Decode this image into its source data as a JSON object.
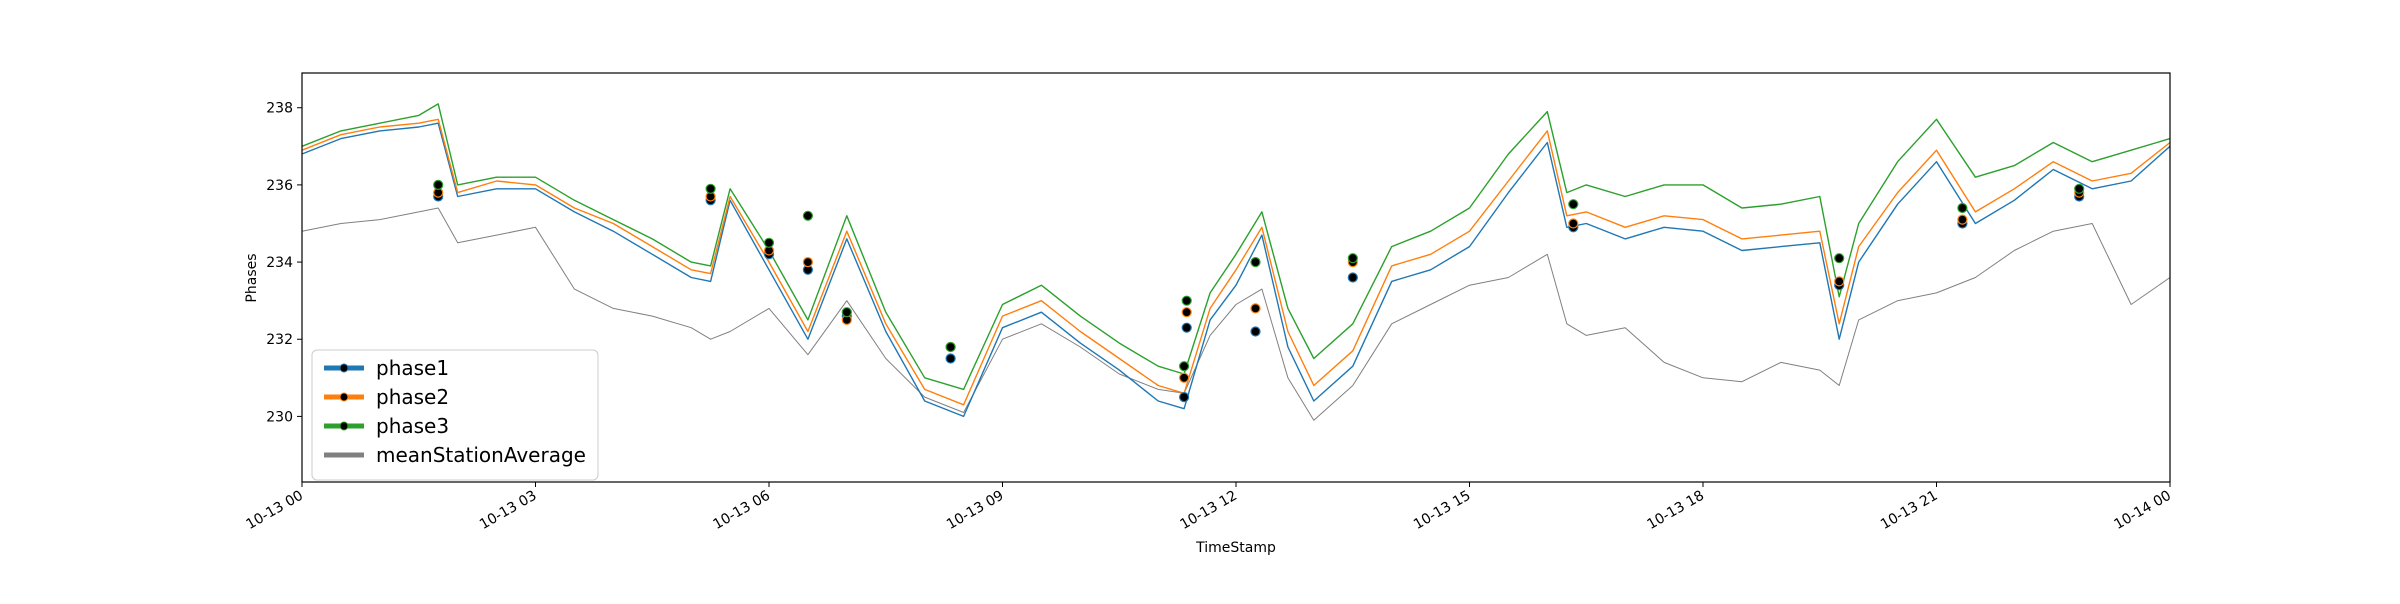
{
  "chart_data": {
    "type": "line",
    "title": "",
    "xlabel": "TimeStamp",
    "ylabel": "Phases",
    "xlim": [
      "2023-10-13 00:00",
      "2023-10-14 00:00"
    ],
    "ylim": [
      228.3,
      238.9
    ],
    "x_ticks": [
      {
        "t": "2023-10-13 00:00",
        "label": "10-13 00"
      },
      {
        "t": "2023-10-13 03:00",
        "label": "10-13 03"
      },
      {
        "t": "2023-10-13 06:00",
        "label": "10-13 06"
      },
      {
        "t": "2023-10-13 09:00",
        "label": "10-13 09"
      },
      {
        "t": "2023-10-13 12:00",
        "label": "10-13 12"
      },
      {
        "t": "2023-10-13 15:00",
        "label": "10-13 15"
      },
      {
        "t": "2023-10-13 18:00",
        "label": "10-13 18"
      },
      {
        "t": "2023-10-13 21:00",
        "label": "10-13 21"
      },
      {
        "t": "2023-10-14 00:00",
        "label": "10-14 00"
      }
    ],
    "y_ticks": [
      {
        "v": 230,
        "label": "230"
      },
      {
        "v": 232,
        "label": "232"
      },
      {
        "v": 234,
        "label": "234"
      },
      {
        "v": 236,
        "label": "236"
      },
      {
        "v": 238,
        "label": "238"
      }
    ],
    "grid": false,
    "legend_position": "lower-left",
    "x": [
      "2023-10-13 00:00",
      "2023-10-13 00:30",
      "2023-10-13 01:00",
      "2023-10-13 01:30",
      "2023-10-13 01:45",
      "2023-10-13 02:00",
      "2023-10-13 02:30",
      "2023-10-13 03:00",
      "2023-10-13 03:30",
      "2023-10-13 04:00",
      "2023-10-13 04:30",
      "2023-10-13 05:00",
      "2023-10-13 05:15",
      "2023-10-13 05:30",
      "2023-10-13 06:00",
      "2023-10-13 06:30",
      "2023-10-13 07:00",
      "2023-10-13 07:30",
      "2023-10-13 08:00",
      "2023-10-13 08:30",
      "2023-10-13 09:00",
      "2023-10-13 09:30",
      "2023-10-13 10:00",
      "2023-10-13 10:30",
      "2023-10-13 11:00",
      "2023-10-13 11:20",
      "2023-10-13 11:40",
      "2023-10-13 12:00",
      "2023-10-13 12:20",
      "2023-10-13 12:40",
      "2023-10-13 13:00",
      "2023-10-13 13:30",
      "2023-10-13 14:00",
      "2023-10-13 14:30",
      "2023-10-13 15:00",
      "2023-10-13 15:30",
      "2023-10-13 16:00",
      "2023-10-13 16:15",
      "2023-10-13 16:30",
      "2023-10-13 17:00",
      "2023-10-13 17:30",
      "2023-10-13 18:00",
      "2023-10-13 18:30",
      "2023-10-13 19:00",
      "2023-10-13 19:30",
      "2023-10-13 19:45",
      "2023-10-13 20:00",
      "2023-10-13 20:30",
      "2023-10-13 21:00",
      "2023-10-13 21:30",
      "2023-10-13 22:00",
      "2023-10-13 22:30",
      "2023-10-13 23:00",
      "2023-10-13 23:30",
      "2023-10-14 00:00"
    ],
    "series": [
      {
        "name": "phase1",
        "color": "#1f77b4",
        "values": [
          236.8,
          237.2,
          237.4,
          237.5,
          237.6,
          235.7,
          235.9,
          235.9,
          235.3,
          234.8,
          234.2,
          233.6,
          233.5,
          235.6,
          233.8,
          232.0,
          234.6,
          232.2,
          230.4,
          230.0,
          232.3,
          232.7,
          231.9,
          231.2,
          230.4,
          230.2,
          232.5,
          233.4,
          234.7,
          231.8,
          230.4,
          231.3,
          233.5,
          233.8,
          234.4,
          235.8,
          237.1,
          234.9,
          235.0,
          234.6,
          234.9,
          234.8,
          234.3,
          234.4,
          234.5,
          232.0,
          234.0,
          235.5,
          236.6,
          235.0,
          235.6,
          236.4,
          235.9,
          236.1,
          237.0
        ]
      },
      {
        "name": "phase2",
        "color": "#ff7f0e",
        "values": [
          236.9,
          237.3,
          237.5,
          237.6,
          237.7,
          235.8,
          236.1,
          236.0,
          235.4,
          235.0,
          234.4,
          233.8,
          233.7,
          235.7,
          234.0,
          232.2,
          234.8,
          232.4,
          230.7,
          230.3,
          232.6,
          233.0,
          232.2,
          231.5,
          230.8,
          230.6,
          232.8,
          233.8,
          234.9,
          232.2,
          230.8,
          231.7,
          233.9,
          234.2,
          234.8,
          236.1,
          237.4,
          235.2,
          235.3,
          234.9,
          235.2,
          235.1,
          234.6,
          234.7,
          234.8,
          232.4,
          234.4,
          235.8,
          236.9,
          235.3,
          235.9,
          236.6,
          236.1,
          236.3,
          237.1
        ]
      },
      {
        "name": "phase3",
        "color": "#2ca02c",
        "values": [
          237.0,
          237.4,
          237.6,
          237.8,
          238.1,
          236.0,
          236.2,
          236.2,
          235.6,
          235.1,
          234.6,
          234.0,
          233.9,
          235.9,
          234.3,
          232.5,
          235.2,
          232.7,
          231.0,
          230.7,
          232.9,
          233.4,
          232.6,
          231.9,
          231.3,
          231.1,
          233.2,
          234.2,
          235.3,
          232.8,
          231.5,
          232.4,
          234.4,
          234.8,
          235.4,
          236.8,
          237.9,
          235.8,
          236.0,
          235.7,
          236.0,
          236.0,
          235.4,
          235.5,
          235.7,
          233.1,
          235.0,
          236.6,
          237.7,
          236.2,
          236.5,
          237.1,
          236.6,
          236.9,
          237.2
        ]
      },
      {
        "name": "meanStationAverage",
        "color": "#808080",
        "values": [
          234.8,
          235.0,
          235.1,
          235.3,
          235.4,
          234.5,
          234.7,
          234.9,
          233.3,
          232.8,
          232.6,
          232.3,
          232.0,
          232.2,
          232.8,
          231.6,
          233.0,
          231.5,
          230.5,
          230.1,
          232.0,
          232.4,
          231.8,
          231.1,
          230.7,
          230.6,
          232.1,
          232.9,
          233.3,
          231.0,
          229.9,
          230.8,
          232.4,
          232.9,
          233.4,
          233.6,
          234.2,
          232.4,
          232.1,
          232.3,
          231.4,
          231.0,
          230.9,
          231.4,
          231.2,
          230.8,
          232.5,
          233.0,
          233.2,
          233.6,
          234.3,
          234.8,
          235.0,
          232.9,
          233.6
        ]
      }
    ],
    "markers": [
      {
        "x": "2023-10-13 01:45",
        "values": [
          235.7,
          235.8,
          236.0
        ]
      },
      {
        "x": "2023-10-13 05:15",
        "values": [
          235.6,
          235.7,
          235.9
        ]
      },
      {
        "x": "2023-10-13 06:00",
        "values": [
          234.2,
          234.3,
          234.5
        ]
      },
      {
        "x": "2023-10-13 06:30",
        "values": [
          233.8,
          234.0,
          235.2
        ]
      },
      {
        "x": "2023-10-13 07:00",
        "values": [
          232.6,
          232.5,
          232.7
        ]
      },
      {
        "x": "2023-10-13 08:20",
        "values": [
          231.5,
          231.8,
          231.8
        ]
      },
      {
        "x": "2023-10-13 11:20",
        "values": [
          230.5,
          231.0,
          231.3
        ]
      },
      {
        "x": "2023-10-13 11:22",
        "values": [
          232.3,
          232.7,
          233.0
        ]
      },
      {
        "x": "2023-10-13 12:15",
        "values": [
          232.2,
          232.8,
          234.0
        ]
      },
      {
        "x": "2023-10-13 13:30",
        "values": [
          233.6,
          234.0,
          234.1
        ]
      },
      {
        "x": "2023-10-13 16:20",
        "values": [
          234.9,
          235.0,
          235.5
        ]
      },
      {
        "x": "2023-10-13 19:45",
        "values": [
          233.4,
          233.5,
          234.1
        ]
      },
      {
        "x": "2023-10-13 21:20",
        "values": [
          235.0,
          235.1,
          235.4
        ]
      },
      {
        "x": "2023-10-13 22:50",
        "values": [
          235.7,
          235.8,
          235.9
        ]
      }
    ]
  }
}
